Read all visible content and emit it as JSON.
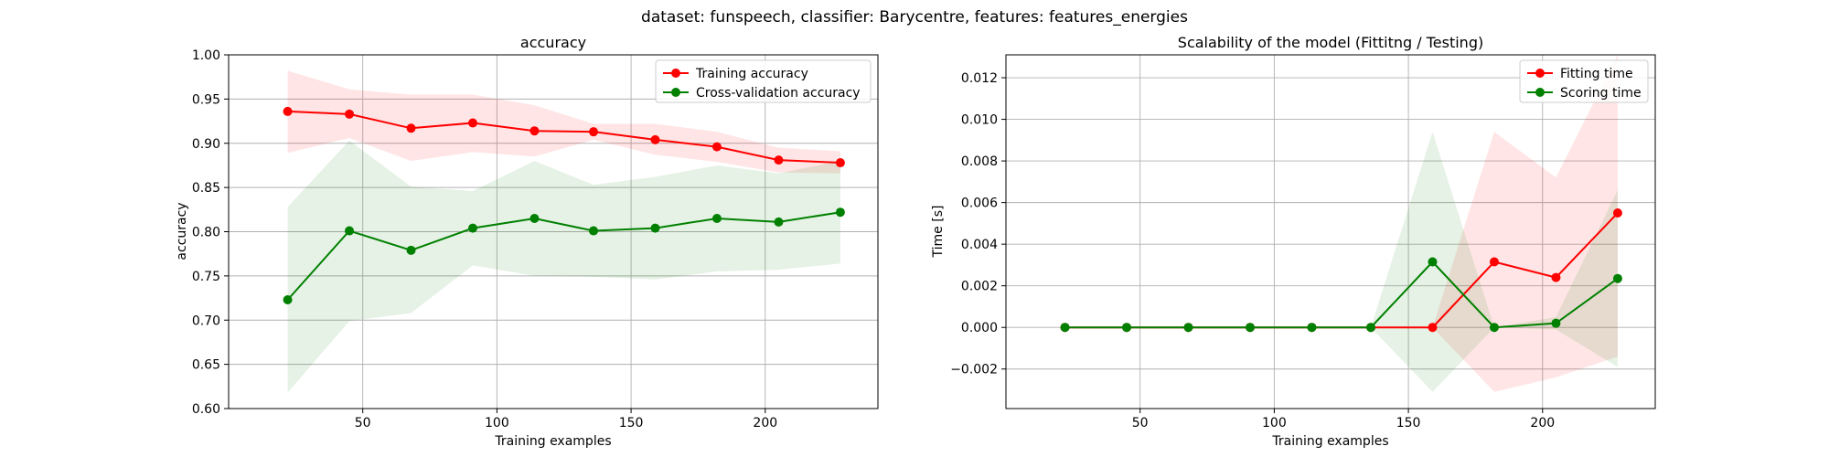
{
  "suptitle": "dataset: funspeech, classifier: Barycentre, features: features_energies",
  "colors": {
    "train": "#ff0000",
    "test": "#008000",
    "train_band": "#ff0000",
    "test_band": "#008000",
    "grid": "#b0b0b0"
  },
  "chart_data": [
    {
      "type": "line",
      "title": "accuracy",
      "xlabel": "Training examples",
      "ylabel": "accuracy",
      "xlim": [
        0,
        242
      ],
      "ylim": [
        0.6,
        1.0
      ],
      "xticks": [
        50,
        100,
        150,
        200
      ],
      "yticks": [
        0.6,
        0.65,
        0.7,
        0.75,
        0.8,
        0.85,
        0.9,
        0.95,
        1.0
      ],
      "ytick_decimals": 2,
      "grid": true,
      "legend_position": "top-right",
      "x": [
        22,
        45,
        68,
        91,
        114,
        136,
        159,
        182,
        205,
        228
      ],
      "series": [
        {
          "name": "Training accuracy",
          "color_key": "train",
          "values": [
            0.936,
            0.933,
            0.917,
            0.923,
            0.914,
            0.913,
            0.904,
            0.896,
            0.881,
            0.878
          ],
          "band_upper": [
            0.982,
            0.961,
            0.955,
            0.955,
            0.943,
            0.922,
            0.922,
            0.913,
            0.895,
            0.891
          ],
          "band_lower": [
            0.889,
            0.906,
            0.88,
            0.89,
            0.885,
            0.904,
            0.887,
            0.879,
            0.867,
            0.866
          ]
        },
        {
          "name": "Cross-validation accuracy",
          "color_key": "test",
          "values": [
            0.723,
            0.801,
            0.779,
            0.804,
            0.815,
            0.801,
            0.804,
            0.815,
            0.811,
            0.822
          ],
          "band_upper": [
            0.828,
            0.903,
            0.851,
            0.846,
            0.88,
            0.853,
            0.862,
            0.875,
            0.866,
            0.88
          ],
          "band_lower": [
            0.618,
            0.699,
            0.708,
            0.762,
            0.75,
            0.749,
            0.746,
            0.755,
            0.757,
            0.764
          ]
        }
      ]
    },
    {
      "type": "line",
      "title": "Scalability of the model (Fittitng / Testing)",
      "xlabel": "Training examples",
      "ylabel": "Time [s]",
      "xlim": [
        0,
        242
      ],
      "ylim": [
        -0.0039,
        0.0131
      ],
      "xticks": [
        50,
        100,
        150,
        200
      ],
      "yticks": [
        -0.002,
        0.0,
        0.002,
        0.004,
        0.006,
        0.008,
        0.01,
        0.012
      ],
      "ytick_decimals": 3,
      "grid": true,
      "legend_position": "top-right",
      "x": [
        22,
        45,
        68,
        91,
        114,
        136,
        159,
        182,
        205,
        228
      ],
      "series": [
        {
          "name": "Fitting time",
          "color_key": "train",
          "values": [
            0,
            0,
            0,
            0,
            0,
            0,
            0,
            0.00315,
            0.0024,
            0.0055
          ],
          "band_upper": [
            0,
            0,
            0,
            0,
            0,
            0,
            0,
            0.0094,
            0.0072,
            0.0131
          ],
          "band_lower": [
            0,
            0,
            0,
            0,
            0,
            0,
            0,
            -0.0031,
            -0.0024,
            -0.0014
          ]
        },
        {
          "name": "Scoring time",
          "color_key": "test",
          "values": [
            0,
            0,
            0,
            0,
            0,
            0,
            0.00315,
            0,
            0.0002,
            0.00235
          ],
          "band_upper": [
            0,
            0,
            0,
            0,
            0,
            0,
            0.0094,
            0,
            0.0005,
            0.0066
          ],
          "band_lower": [
            0,
            0,
            0,
            0,
            0,
            0,
            -0.0031,
            0,
            -0.0001,
            -0.0019
          ]
        }
      ]
    }
  ]
}
